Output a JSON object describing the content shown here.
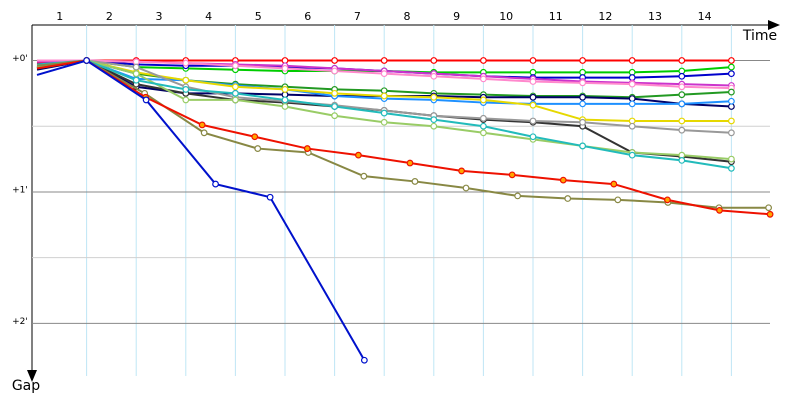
{
  "chart_data": {
    "type": "line",
    "x_label": "Time",
    "y_label": "Gap",
    "laps": [
      "1",
      "2",
      "3",
      "4",
      "5",
      "6",
      "7",
      "8",
      "9",
      "10",
      "11",
      "12",
      "13",
      "14"
    ],
    "x": [
      0,
      1,
      2,
      3,
      4,
      5,
      6,
      7,
      8,
      9,
      10,
      11,
      12,
      13,
      14
    ],
    "xlim": [
      0,
      15
    ],
    "ylim": [
      -0.27,
      2.4
    ],
    "yticks": [
      {
        "value": 0,
        "label": "+0'"
      },
      {
        "value": 1,
        "label": "+1'"
      },
      {
        "value": 2,
        "label": "+2'"
      }
    ],
    "minor_yticks": [
      0.5,
      1.5
    ],
    "grid": true,
    "series": [
      {
        "color": "#ff0000",
        "values": [
          0.02,
          0,
          0,
          0,
          0,
          0,
          0,
          0,
          0,
          0,
          0,
          0,
          0,
          0,
          0
        ]
      },
      {
        "color": "#00cc00",
        "values": [
          0.06,
          0,
          0.05,
          0.06,
          0.07,
          0.08,
          0.08,
          0.08,
          0.09,
          0.09,
          0.09,
          0.09,
          0.09,
          0.08,
          0.05
        ]
      },
      {
        "color": "#0000cc",
        "values": [
          0.03,
          0,
          0.03,
          0.04,
          0.04,
          0.05,
          0.06,
          0.08,
          0.1,
          0.12,
          0.13,
          0.13,
          0.13,
          0.12,
          0.1
        ]
      },
      {
        "color": "#cc33cc",
        "values": [
          0.01,
          0,
          0.01,
          0.02,
          0.03,
          0.04,
          0.06,
          0.08,
          0.1,
          0.12,
          0.14,
          0.16,
          0.17,
          0.18,
          0.19
        ]
      },
      {
        "color": "#ff88cc",
        "values": [
          0,
          0,
          0.01,
          0.02,
          0.04,
          0.06,
          0.08,
          0.1,
          0.12,
          0.14,
          0.16,
          0.17,
          0.18,
          0.2,
          0.21
        ]
      },
      {
        "color": "#229922",
        "values": [
          0.05,
          0,
          0.1,
          0.15,
          0.18,
          0.2,
          0.22,
          0.23,
          0.25,
          0.26,
          0.27,
          0.27,
          0.28,
          0.26,
          0.24
        ]
      },
      {
        "color": "#000066",
        "values": [
          0.07,
          0,
          0.2,
          0.25,
          0.25,
          0.26,
          0.27,
          0.27,
          0.27,
          0.28,
          0.28,
          0.28,
          0.29,
          0.33,
          0.35
        ]
      },
      {
        "color": "#1e90ff",
        "values": [
          0.05,
          0,
          0.14,
          0.15,
          0.19,
          0.22,
          0.27,
          0.29,
          0.3,
          0.32,
          0.33,
          0.33,
          0.33,
          0.33,
          0.31
        ]
      },
      {
        "color": "#e6d800",
        "values": [
          0.04,
          0,
          0.09,
          0.15,
          0.2,
          0.22,
          0.25,
          0.27,
          0.28,
          0.3,
          0.34,
          0.45,
          0.46,
          0.46,
          0.46
        ]
      },
      {
        "color": "#333333",
        "values": [
          0.06,
          0,
          0.18,
          0.25,
          0.3,
          0.32,
          0.35,
          0.38,
          0.42,
          0.45,
          0.47,
          0.5,
          0.7,
          0.73,
          0.77
        ]
      },
      {
        "color": "#999999",
        "values": [
          0.04,
          0,
          0.05,
          0.2,
          0.28,
          0.31,
          0.34,
          0.38,
          0.42,
          0.44,
          0.46,
          0.47,
          0.5,
          0.53,
          0.55
        ]
      },
      {
        "color": "#99cc66",
        "values": [
          0.05,
          0,
          0.1,
          0.3,
          0.3,
          0.35,
          0.42,
          0.47,
          0.5,
          0.55,
          0.6,
          0.65,
          0.7,
          0.72,
          0.75
        ]
      },
      {
        "color": "#22bbbb",
        "values": [
          0.03,
          0,
          0.15,
          0.22,
          0.25,
          0.3,
          0.35,
          0.4,
          0.45,
          0.5,
          0.58,
          0.65,
          0.72,
          0.76,
          0.82
        ]
      },
      {
        "color": "#888844",
        "x": [
          0,
          1,
          2.17,
          3.37,
          4.45,
          5.47,
          6.59,
          7.62,
          8.65,
          9.69,
          10.7,
          11.71,
          12.72,
          13.75,
          14.75
        ],
        "values": [
          0.04,
          0,
          0.25,
          0.55,
          0.67,
          0.7,
          0.88,
          0.92,
          0.97,
          1.03,
          1.05,
          1.06,
          1.08,
          1.12,
          1.12
        ]
      },
      {
        "color": "#ee1100",
        "point_fill": "#ffa500",
        "x": [
          0,
          1,
          2.19,
          3.33,
          4.39,
          5.45,
          6.48,
          7.52,
          8.56,
          9.58,
          10.61,
          11.63,
          12.71,
          13.76,
          14.78
        ],
        "values": [
          0.06,
          0,
          0.28,
          0.49,
          0.58,
          0.67,
          0.72,
          0.78,
          0.84,
          0.87,
          0.91,
          0.94,
          1.06,
          1.14,
          1.17
        ]
      },
      {
        "color": "#0011cc",
        "x": [
          0,
          1,
          2.2,
          3.6,
          4.7,
          6.6
        ],
        "values": [
          0.11,
          0,
          0.3,
          0.94,
          1.04,
          2.28
        ]
      }
    ]
  }
}
